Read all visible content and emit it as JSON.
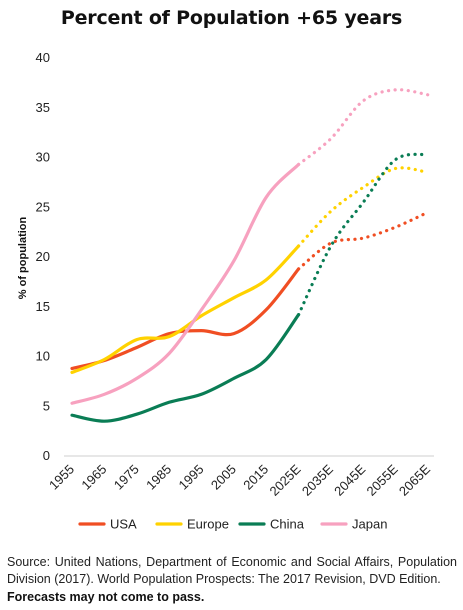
{
  "chart_data": {
    "type": "line",
    "title": "Percent of Population +65 years",
    "xlabel": "",
    "ylabel": "% of population",
    "categories": [
      "1955",
      "1965",
      "1975",
      "1985",
      "1995",
      "2005",
      "2015",
      "2025E",
      "2035E",
      "2045E",
      "2055E",
      "2065E"
    ],
    "ylim": [
      0,
      40
    ],
    "yticks": [
      0,
      5,
      10,
      15,
      20,
      25,
      30,
      35,
      40
    ],
    "grid": false,
    "legend_position": "bottom",
    "forecast_start_index": 7,
    "series": [
      {
        "name": "USA",
        "color": "#f04e23",
        "values": [
          8.8,
          9.6,
          10.9,
          12.3,
          12.6,
          12.3,
          14.7,
          18.8,
          21.4,
          21.9,
          23.0,
          24.5
        ]
      },
      {
        "name": "Europe",
        "color": "#ffd200",
        "values": [
          8.4,
          9.7,
          11.7,
          12.0,
          14.1,
          15.9,
          17.7,
          21.1,
          24.6,
          27.0,
          28.9,
          28.5
        ]
      },
      {
        "name": "China",
        "color": "#0a7d55",
        "values": [
          4.1,
          3.5,
          4.2,
          5.4,
          6.2,
          7.8,
          9.7,
          14.2,
          21.1,
          25.5,
          29.8,
          30.3
        ]
      },
      {
        "name": "Japan",
        "color": "#f7a1bf",
        "values": [
          5.3,
          6.2,
          7.8,
          10.3,
          14.7,
          19.6,
          26.0,
          29.3,
          31.9,
          35.7,
          36.8,
          36.3
        ]
      }
    ]
  },
  "source_text": "Source: United Nations, Department of Economic and Social Affairs, Population Division (2017). World Population Prospects: The 2017 Revision, DVD Edition.",
  "disclaimer": "Forecasts may not come to pass."
}
